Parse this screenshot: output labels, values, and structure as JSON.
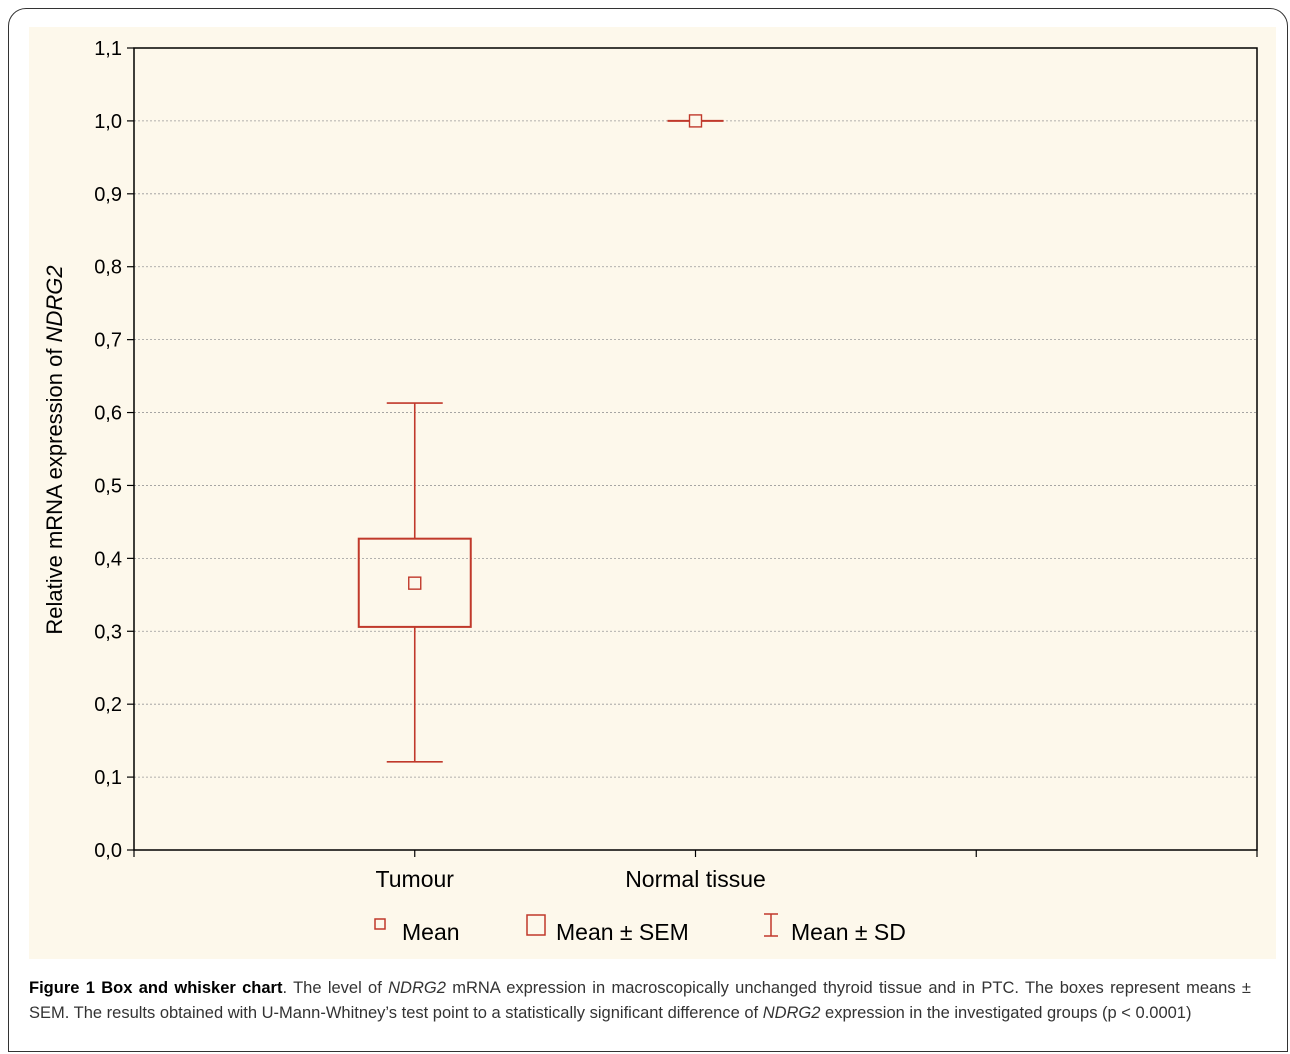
{
  "chart_data": {
    "type": "box",
    "categories": [
      "Tumour",
      "Normal tissue"
    ],
    "series": [
      {
        "category": "Tumour",
        "mean": 0.366,
        "sem_low": 0.306,
        "sem_high": 0.427,
        "sd_low": 0.121,
        "sd_high": 0.613
      },
      {
        "category": "Normal tissue",
        "mean": 1.0,
        "sem_low": 1.0,
        "sem_high": 1.0,
        "sd_low": 1.0,
        "sd_high": 1.0
      }
    ],
    "ylabel_prefix": "Relative mRNA expression of ",
    "ylabel_gene": "NDRG2",
    "ylim": [
      0.0,
      1.1
    ],
    "yticks": [
      "0,0",
      "0,1",
      "0,2",
      "0,3",
      "0,4",
      "0,5",
      "0,6",
      "0,7",
      "0,8",
      "0,9",
      "1,0",
      "1,1"
    ],
    "grid": true,
    "legend_position": "bottom",
    "legend": [
      "Mean",
      "Mean ± SEM",
      "Mean ± SD"
    ],
    "color": "#c0392b"
  },
  "caption": {
    "label": "Figure 1 Box and whisker chart",
    "t1": ". The level of ",
    "gene": "NDRG2",
    "t2": " mRNA expression in macroscopically unchanged thyroid tissue and in PTC. The boxes represent means ± SEM. The results obtained with U-Mann-Whitney’s test point to a statistically significant difference of ",
    "gene2": "NDRG2",
    "t3": " expression in the investigated groups (p < 0.0001)"
  }
}
